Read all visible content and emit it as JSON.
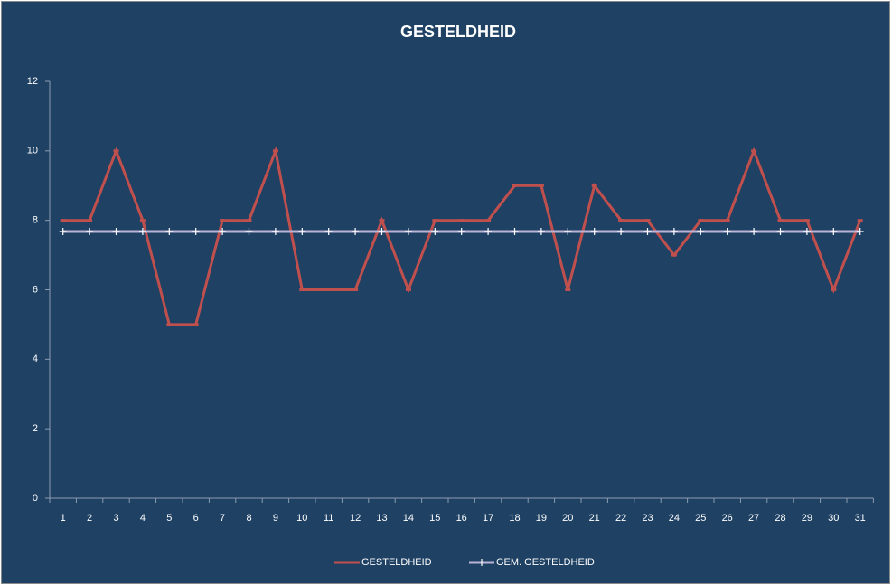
{
  "chart_data": {
    "type": "line",
    "title": "GESTELDHEID",
    "categories": [
      "1",
      "2",
      "3",
      "4",
      "5",
      "6",
      "7",
      "8",
      "9",
      "10",
      "11",
      "12",
      "13",
      "14",
      "15",
      "16",
      "17",
      "18",
      "19",
      "20",
      "21",
      "22",
      "23",
      "24",
      "25",
      "26",
      "27",
      "28",
      "29",
      "30",
      "31"
    ],
    "series": [
      {
        "name": "GESTELDHEID",
        "color": "#c0504d",
        "values": [
          8,
          8,
          10,
          8,
          5,
          5,
          8,
          8,
          10,
          6,
          6,
          6,
          8,
          6,
          8,
          8,
          8,
          9,
          9,
          6,
          9,
          8,
          8,
          7,
          8,
          8,
          10,
          8,
          8,
          6,
          8
        ]
      },
      {
        "name": "GEM. GESTELDHEID",
        "color": "#b9b3d6",
        "marker": "plus",
        "values": [
          7.68,
          7.68,
          7.68,
          7.68,
          7.68,
          7.68,
          7.68,
          7.68,
          7.68,
          7.68,
          7.68,
          7.68,
          7.68,
          7.68,
          7.68,
          7.68,
          7.68,
          7.68,
          7.68,
          7.68,
          7.68,
          7.68,
          7.68,
          7.68,
          7.68,
          7.68,
          7.68,
          7.68,
          7.68,
          7.68,
          7.68
        ]
      }
    ],
    "ylim": [
      0,
      12
    ],
    "yticks": [
      0,
      2,
      4,
      6,
      8,
      10,
      12
    ],
    "grid": false,
    "legend": "bottom"
  }
}
